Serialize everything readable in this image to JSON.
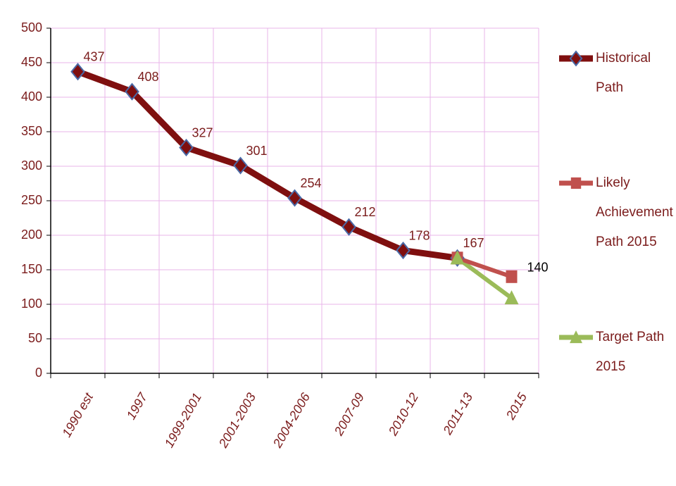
{
  "chart_data": {
    "type": "line",
    "categories": [
      "1990 est",
      "1997",
      "1999-2001",
      "2001-2003",
      "2004-2006",
      "2007-09",
      "2010-12",
      "2011-13",
      "2015"
    ],
    "series": [
      {
        "name": "Historical Path",
        "color": "#7f0f0f",
        "marker": "diamond",
        "label_color": "#7b1c1c",
        "values": [
          437,
          408,
          327,
          301,
          254,
          212,
          178,
          167,
          null
        ]
      },
      {
        "name": "Likely Achievement Path 2015",
        "color": "#c0504d",
        "marker": "square",
        "label_color": "#000000",
        "values": [
          null,
          null,
          null,
          null,
          null,
          null,
          null,
          167,
          140
        ]
      },
      {
        "name": "Target Path 2015",
        "color": "#9bbb59",
        "marker": "triangle",
        "label_color": "#000000",
        "values": [
          null,
          null,
          null,
          null,
          null,
          null,
          null,
          167,
          109
        ]
      }
    ],
    "ylim": [
      0,
      500
    ],
    "yticks": [
      0,
      50,
      100,
      150,
      200,
      250,
      300,
      350,
      400,
      450,
      500
    ],
    "grid": true,
    "legend": "right"
  }
}
